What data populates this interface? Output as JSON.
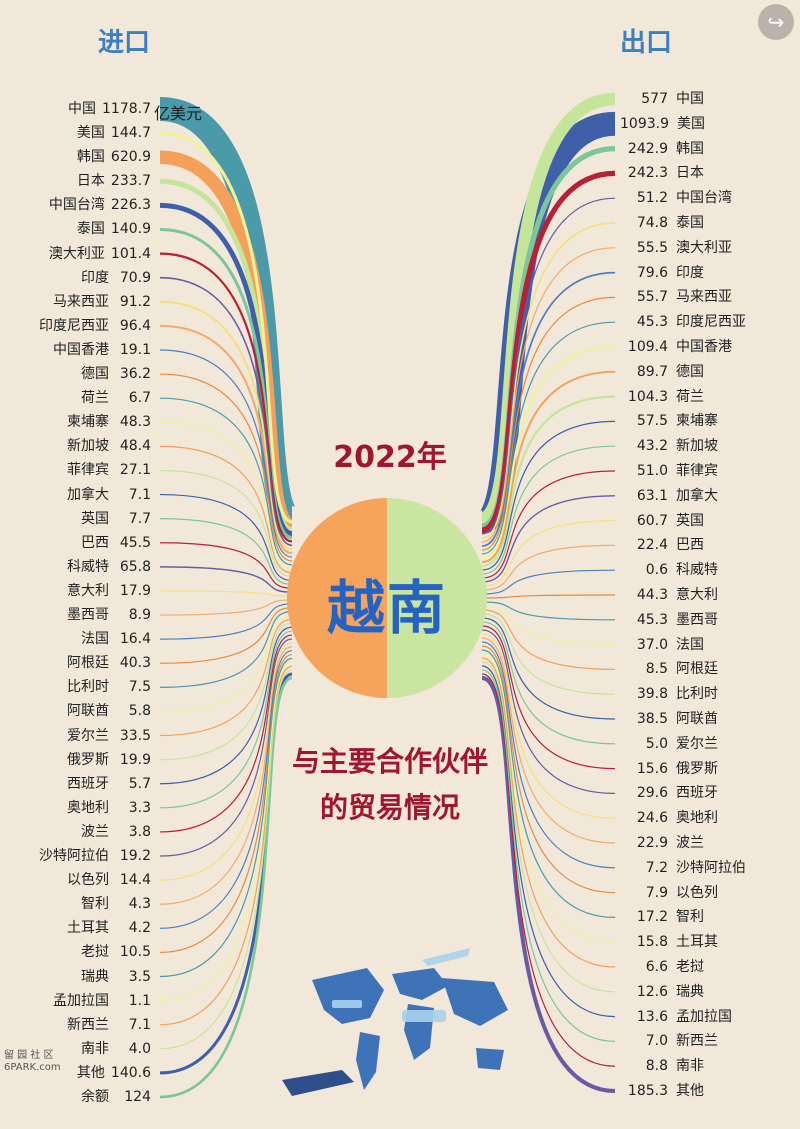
{
  "header": {
    "import_label": "进口",
    "export_label": "出口"
  },
  "center": {
    "year": "2022年",
    "country": "越南",
    "subtitle_line1": "与主要合作伙伴",
    "subtitle_line2": "的贸易情况"
  },
  "unit": "亿美元",
  "watermark": {
    "line1": "留 园 社 区",
    "line2": "6PARK.com"
  },
  "chart_data": {
    "type": "flow",
    "imports": [
      {
        "partner": "中国",
        "value": "1178.7"
      },
      {
        "partner": "美国",
        "value": "144.7"
      },
      {
        "partner": "韩国",
        "value": "620.9"
      },
      {
        "partner": "日本",
        "value": "233.7"
      },
      {
        "partner": "中国台湾",
        "value": "226.3"
      },
      {
        "partner": "泰国",
        "value": "140.9"
      },
      {
        "partner": "澳大利亚",
        "value": "101.4"
      },
      {
        "partner": "印度",
        "value": "70.9"
      },
      {
        "partner": "马来西亚",
        "value": "91.2"
      },
      {
        "partner": "印度尼西亚",
        "value": "96.4"
      },
      {
        "partner": "中国香港",
        "value": "19.1"
      },
      {
        "partner": "德国",
        "value": "36.2"
      },
      {
        "partner": "荷兰",
        "value": "6.7"
      },
      {
        "partner": "柬埔寨",
        "value": "48.3"
      },
      {
        "partner": "新加坡",
        "value": "48.4"
      },
      {
        "partner": "菲律宾",
        "value": "27.1"
      },
      {
        "partner": "加拿大",
        "value": "7.1"
      },
      {
        "partner": "英国",
        "value": "7.7"
      },
      {
        "partner": "巴西",
        "value": "45.5"
      },
      {
        "partner": "科威特",
        "value": "65.8"
      },
      {
        "partner": "意大利",
        "value": "17.9"
      },
      {
        "partner": "墨西哥",
        "value": "8.9"
      },
      {
        "partner": "法国",
        "value": "16.4"
      },
      {
        "partner": "阿根廷",
        "value": "40.3"
      },
      {
        "partner": "比利时",
        "value": "7.5"
      },
      {
        "partner": "阿联酋",
        "value": "5.8"
      },
      {
        "partner": "爱尔兰",
        "value": "33.5"
      },
      {
        "partner": "俄罗斯",
        "value": "19.9"
      },
      {
        "partner": "西班牙",
        "value": "5.7"
      },
      {
        "partner": "奥地利",
        "value": "3.3"
      },
      {
        "partner": "波兰",
        "value": "3.8"
      },
      {
        "partner": "沙特阿拉伯",
        "value": "19.2"
      },
      {
        "partner": "以色列",
        "value": "14.4"
      },
      {
        "partner": "智利",
        "value": "4.3"
      },
      {
        "partner": "土耳其",
        "value": "4.2"
      },
      {
        "partner": "老挝",
        "value": "10.5"
      },
      {
        "partner": "瑞典",
        "value": "3.5"
      },
      {
        "partner": "孟加拉国",
        "value": "1.1"
      },
      {
        "partner": "新西兰",
        "value": "7.1"
      },
      {
        "partner": "南非",
        "value": "4.0"
      },
      {
        "partner": "其他",
        "value": "140.6"
      },
      {
        "partner": "余额",
        "value": "124"
      }
    ],
    "exports": [
      {
        "partner": "中国",
        "value": "577"
      },
      {
        "partner": "美国",
        "value": "1093.9"
      },
      {
        "partner": "韩国",
        "value": "242.9"
      },
      {
        "partner": "日本",
        "value": "242.3"
      },
      {
        "partner": "中国台湾",
        "value": "51.2"
      },
      {
        "partner": "泰国",
        "value": "74.8"
      },
      {
        "partner": "澳大利亚",
        "value": "55.5"
      },
      {
        "partner": "印度",
        "value": "79.6"
      },
      {
        "partner": "马来西亚",
        "value": "55.7"
      },
      {
        "partner": "印度尼西亚",
        "value": "45.3"
      },
      {
        "partner": "中国香港",
        "value": "109.4"
      },
      {
        "partner": "德国",
        "value": "89.7"
      },
      {
        "partner": "荷兰",
        "value": "104.3"
      },
      {
        "partner": "柬埔寨",
        "value": "57.5"
      },
      {
        "partner": "新加坡",
        "value": "43.2"
      },
      {
        "partner": "菲律宾",
        "value": "51.0"
      },
      {
        "partner": "加拿大",
        "value": "63.1"
      },
      {
        "partner": "英国",
        "value": "60.7"
      },
      {
        "partner": "巴西",
        "value": "22.4"
      },
      {
        "partner": "科威特",
        "value": "0.6"
      },
      {
        "partner": "意大利",
        "value": "44.3"
      },
      {
        "partner": "墨西哥",
        "value": "45.3"
      },
      {
        "partner": "法国",
        "value": "37.0"
      },
      {
        "partner": "阿根廷",
        "value": "8.5"
      },
      {
        "partner": "比利时",
        "value": "39.8"
      },
      {
        "partner": "阿联酋",
        "value": "38.5"
      },
      {
        "partner": "爱尔兰",
        "value": "5.0"
      },
      {
        "partner": "俄罗斯",
        "value": "15.6"
      },
      {
        "partner": "西班牙",
        "value": "29.6"
      },
      {
        "partner": "奥地利",
        "value": "24.6"
      },
      {
        "partner": "波兰",
        "value": "22.9"
      },
      {
        "partner": "沙特阿拉伯",
        "value": "7.2"
      },
      {
        "partner": "以色列",
        "value": "7.9"
      },
      {
        "partner": "智利",
        "value": "17.2"
      },
      {
        "partner": "土耳其",
        "value": "15.8"
      },
      {
        "partner": "老挝",
        "value": "6.6"
      },
      {
        "partner": "瑞典",
        "value": "12.6"
      },
      {
        "partner": "孟加拉国",
        "value": "13.6"
      },
      {
        "partner": "新西兰",
        "value": "7.0"
      },
      {
        "partner": "南非",
        "value": "8.8"
      },
      {
        "partner": "其他",
        "value": "185.3"
      }
    ],
    "colors": [
      "#4a9aaa",
      "#eef29a",
      "#f5a05a",
      "#c5e59a",
      "#3f5fa8",
      "#7cc79a",
      "#b82035",
      "#6a5aa5",
      "#f5e07a",
      "#f5a96a",
      "#4f7fc0",
      "#e98a3a"
    ]
  }
}
